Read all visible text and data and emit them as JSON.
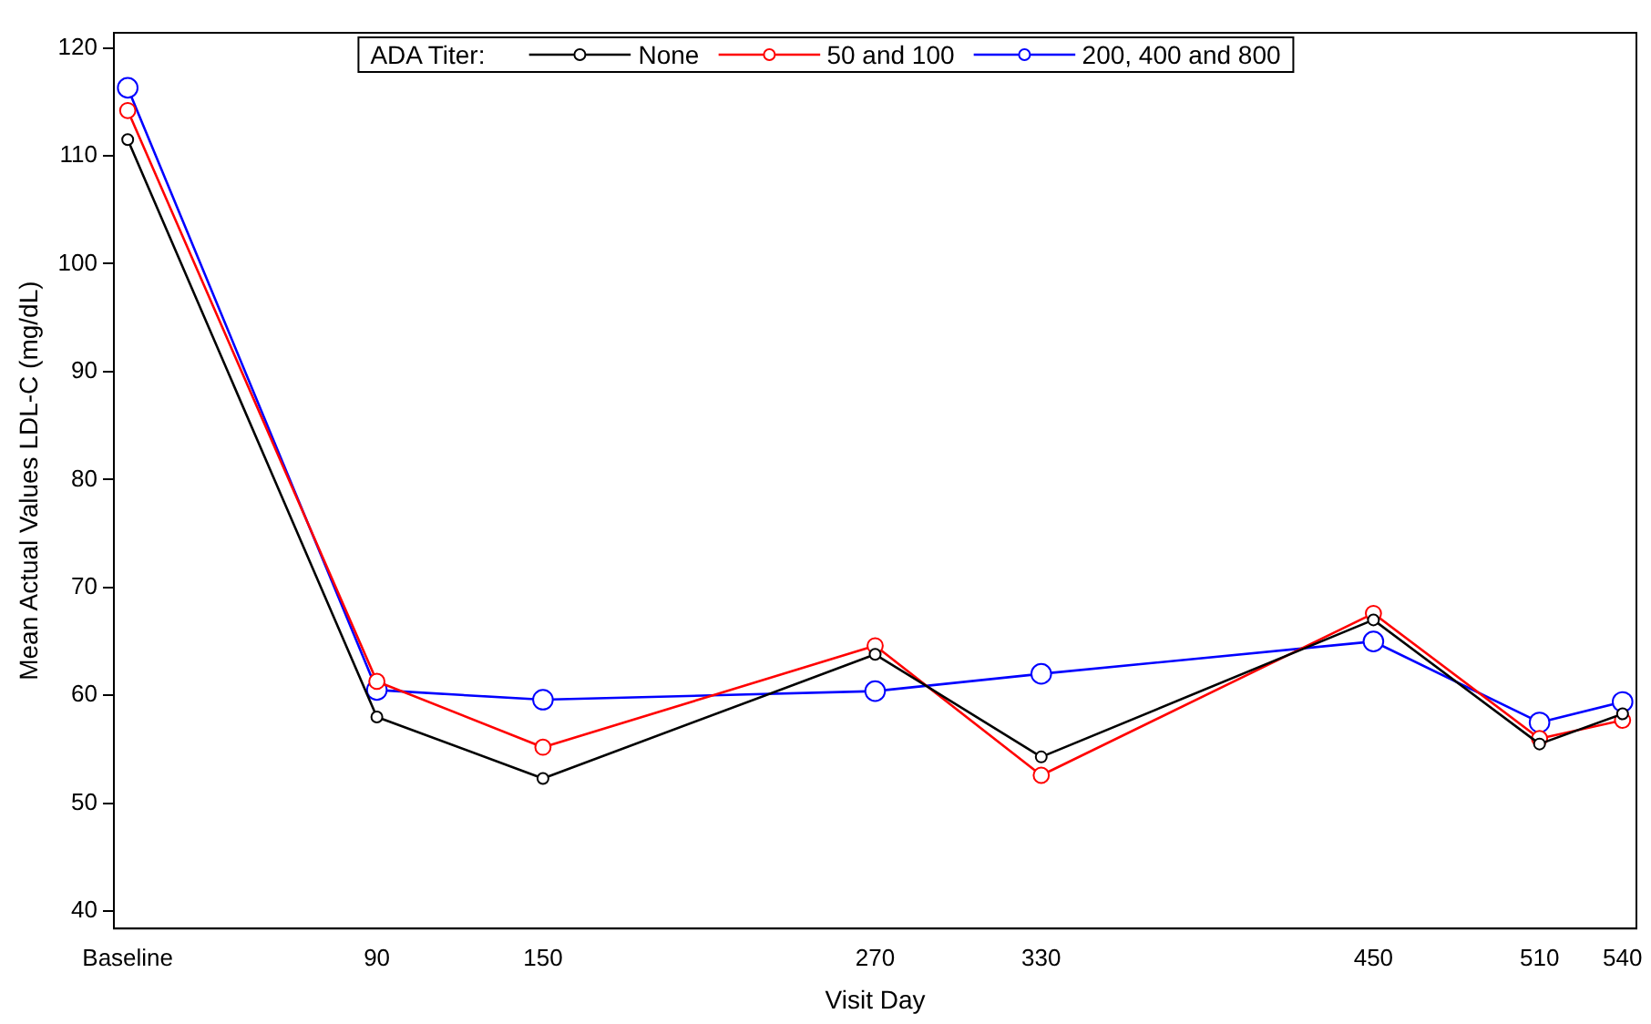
{
  "chart_data": {
    "type": "line",
    "xlabel": "Visit Day",
    "ylabel": "Mean Actual Values LDL-C (mg/dL)",
    "legend_title": "ADA Titer:",
    "x": [
      0,
      90,
      150,
      270,
      330,
      450,
      510,
      540
    ],
    "series": [
      {
        "name": "None",
        "color": "#000000",
        "values": [
          111.5,
          58,
          52.3,
          63.8,
          54.3,
          67,
          55.5,
          58.3
        ]
      },
      {
        "name": "50 and 100",
        "color": "#ff0000",
        "values": [
          114.2,
          61.3,
          55.2,
          64.6,
          52.6,
          67.6,
          56,
          57.7
        ]
      },
      {
        "name": "200, 400 and 800",
        "color": "#0000ff",
        "values": [
          116.3,
          60.5,
          59.6,
          60.4,
          62,
          65,
          57.5,
          59.4
        ]
      }
    ],
    "xlim": [
      -5,
      545
    ],
    "xticks": [
      {
        "value": 0,
        "label": "Baseline"
      },
      90,
      150,
      270,
      330,
      450,
      510,
      540
    ],
    "ylim": [
      38.4,
      121.4
    ],
    "yticks": [
      40,
      50,
      60,
      70,
      80,
      90,
      100,
      110,
      120
    ],
    "grid": false,
    "legend": "top",
    "marker": "circle",
    "line_style": "solid"
  }
}
